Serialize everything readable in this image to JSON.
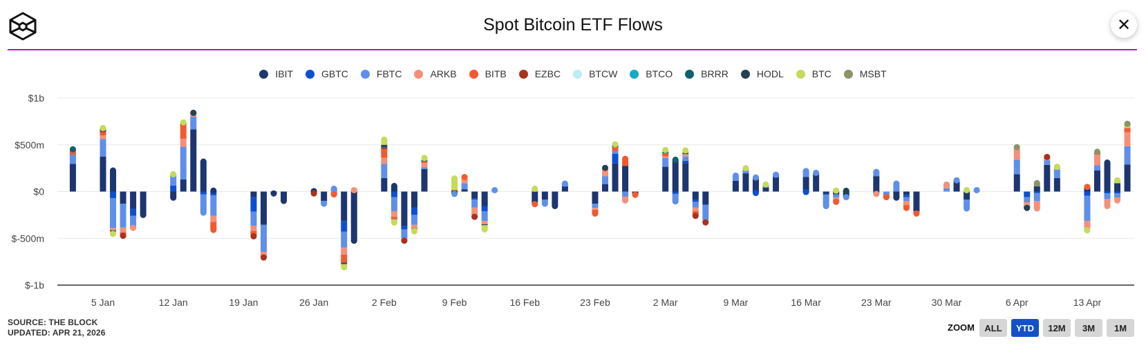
{
  "header": {
    "title": "Spot Bitcoin ETF Flows",
    "close_icon": "close-icon",
    "logo_icon": "the-block-cube-logo"
  },
  "footer": {
    "source": "SOURCE: THE BLOCK",
    "updated": "UPDATED: APR 21, 2026"
  },
  "zoom": {
    "label": "ZOOM",
    "options": [
      {
        "label": "ALL",
        "active": false
      },
      {
        "label": "YTD",
        "active": true
      },
      {
        "label": "12M",
        "active": false
      },
      {
        "label": "3M",
        "active": false
      },
      {
        "label": "1M",
        "active": false
      }
    ]
  },
  "chart_data": {
    "type": "bar",
    "stacked": true,
    "title": "Spot Bitcoin ETF Flows",
    "xlabel": "",
    "ylabel": "",
    "units": "USD millions",
    "ylim": [
      -1000,
      1000
    ],
    "yticks": [
      {
        "value": 1000,
        "label": "$1b"
      },
      {
        "value": 500,
        "label": "$500m"
      },
      {
        "value": 0,
        "label": "$0"
      },
      {
        "value": -500,
        "label": "$-500m"
      },
      {
        "value": -1000,
        "label": "$-1b"
      }
    ],
    "xticks": [
      {
        "date": "2026-01-05",
        "label": "5 Jan"
      },
      {
        "date": "2026-01-12",
        "label": "12 Jan"
      },
      {
        "date": "2026-01-19",
        "label": "19 Jan"
      },
      {
        "date": "2026-01-26",
        "label": "26 Jan"
      },
      {
        "date": "2026-02-02",
        "label": "2 Feb"
      },
      {
        "date": "2026-02-09",
        "label": "9 Feb"
      },
      {
        "date": "2026-02-16",
        "label": "16 Feb"
      },
      {
        "date": "2026-02-23",
        "label": "23 Feb"
      },
      {
        "date": "2026-03-02",
        "label": "2 Mar"
      },
      {
        "date": "2026-03-09",
        "label": "9 Mar"
      },
      {
        "date": "2026-03-16",
        "label": "16 Mar"
      },
      {
        "date": "2026-03-23",
        "label": "23 Mar"
      },
      {
        "date": "2026-03-30",
        "label": "30 Mar"
      },
      {
        "date": "2026-04-06",
        "label": "6 Apr"
      },
      {
        "date": "2026-04-13",
        "label": "13 Apr"
      }
    ],
    "grid": true,
    "legend_position": "top-center",
    "series": [
      {
        "name": "IBIT",
        "color": "#1d3670"
      },
      {
        "name": "GBTC",
        "color": "#0d4fd1"
      },
      {
        "name": "FBTC",
        "color": "#5f8fe8"
      },
      {
        "name": "ARKB",
        "color": "#f4907a"
      },
      {
        "name": "BITB",
        "color": "#f15a30"
      },
      {
        "name": "EZBC",
        "color": "#a8331f"
      },
      {
        "name": "BTCW",
        "color": "#bdebf6"
      },
      {
        "name": "BTCO",
        "color": "#17a9c6"
      },
      {
        "name": "BRRR",
        "color": "#0f6070"
      },
      {
        "name": "HODL",
        "color": "#23414f"
      },
      {
        "name": "BTC",
        "color": "#c5db5c"
      },
      {
        "name": "MSBT",
        "color": "#8a9468"
      }
    ],
    "points": [
      {
        "date": "2026-01-02",
        "values": {
          "IBIT": 295,
          "FBTC": 100,
          "BITB": 45,
          "BRRR": 12
        }
      },
      {
        "date": "2026-01-05",
        "values": {
          "IBIT": 375,
          "FBTC": 185,
          "ARKB": 40,
          "BITB": 35,
          "EZBC": 12,
          "BRRR": 20,
          "BTC": 12
        }
      },
      {
        "date": "2026-01-06",
        "values": {
          "IBIT": 225,
          "GBTC": -70,
          "FBTC": -320,
          "ARKB": -25,
          "HODL": -12,
          "BTC": -25
        }
      },
      {
        "date": "2026-01-07",
        "values": {
          "IBIT": -130,
          "FBTC": -255,
          "ARKB": -50,
          "BITB": -30,
          "EZBC": -8
        }
      },
      {
        "date": "2026-01-08",
        "values": {
          "IBIT": -185,
          "GBTC": -75,
          "FBTC": -120,
          "ARKB": -8
        }
      },
      {
        "date": "2026-01-09",
        "values": {
          "IBIT": -250
        }
      },
      {
        "date": "2026-01-12",
        "values": {
          "IBIT": -65,
          "GBTC": 65,
          "FBTC": 115,
          "BTC": 5
        }
      },
      {
        "date": "2026-01-13",
        "values": {
          "IBIT": 130,
          "FBTC": 350,
          "ARKB": 85,
          "BITB": 155,
          "HODL": 8,
          "BTC": 12
        }
      },
      {
        "date": "2026-01-14",
        "values": {
          "IBIT": 665,
          "FBTC": 135,
          "ARKB": 30,
          "HODL": 12
        }
      },
      {
        "date": "2026-01-15",
        "values": {
          "IBIT": 320,
          "GBTC": -30,
          "FBTC": -195
        }
      },
      {
        "date": "2026-01-16",
        "values": {
          "IBIT": 10,
          "GBTC": -40,
          "FBTC": -220,
          "ARKB": -65,
          "BITB": -85
        }
      },
      {
        "date": "2026-01-20",
        "values": {
          "IBIT": -60,
          "GBTC": -155,
          "FBTC": -150,
          "ARKB": -55,
          "BITB": -50,
          "EZBC": -8
        }
      },
      {
        "date": "2026-01-21",
        "values": {
          "IBIT": -355,
          "FBTC": -290,
          "ARKB": -40,
          "EZBC": -20
        }
      },
      {
        "date": "2026-01-22",
        "values": {
          "IBIT": -20
        }
      },
      {
        "date": "2026-01-23",
        "values": {
          "IBIT": -100
        }
      },
      {
        "date": "2026-01-26",
        "values": {
          "IBIT": 5,
          "EZBC": -5,
          "BITB": -15
        }
      },
      {
        "date": "2026-01-27",
        "values": {
          "IBIT": -100,
          "FBTC": -30
        }
      },
      {
        "date": "2026-01-28",
        "values": {
          "FBTC": 30,
          "ARKB": -5,
          "BITB": -25
        }
      },
      {
        "date": "2026-01-29",
        "values": {
          "IBIT": -315,
          "GBTC": -115,
          "FBTC": -170,
          "ARKB": -75,
          "BITB": -85,
          "HODL": -10,
          "BRRR": -5,
          "BTC": -35
        }
      },
      {
        "date": "2026-01-30",
        "values": {
          "IBIT": -525,
          "ARKB": 15
        }
      },
      {
        "date": "2026-02-02",
        "values": {
          "IBIT": 145,
          "FBTC": 150,
          "ARKB": 65,
          "BITB": 95,
          "EZBC": 15,
          "HODL": 20,
          "BRRR": 10,
          "BTC": 55
        }
      },
      {
        "date": "2026-02-03",
        "values": {
          "IBIT": 60,
          "GBTC": -60,
          "FBTC": -150,
          "ARKB": -60,
          "BITB": -20,
          "EZBC": -5,
          "BTC": -35
        }
      },
      {
        "date": "2026-02-04",
        "values": {
          "IBIT": -370,
          "GBTC": -35,
          "FBTC": -95,
          "ARKB": -20,
          "EZBC": -5
        }
      },
      {
        "date": "2026-02-05",
        "values": {
          "IBIT": -170,
          "GBTC": -80,
          "FBTC": -105,
          "ARKB": -35,
          "BITB": -10,
          "BTC": -25
        }
      },
      {
        "date": "2026-02-06",
        "values": {
          "IBIT": 240,
          "FBTC": 20,
          "ARKB": 45,
          "BITB": 20,
          "BRRR": 10,
          "BTC": 25
        }
      },
      {
        "date": "2026-02-09",
        "values": {
          "IBIT": -20,
          "EZBC": 15,
          "BTC": 125,
          "FBTC": -5
        }
      },
      {
        "date": "2026-02-10",
        "values": {
          "IBIT": 25,
          "FBTC": 65,
          "ARKB": 55,
          "BITB": 10
        }
      },
      {
        "date": "2026-02-11",
        "values": {
          "IBIT": -75,
          "GBTC": -10,
          "FBTC": -85,
          "ARKB": -90,
          "EZBC": -10
        }
      },
      {
        "date": "2026-02-12",
        "values": {
          "IBIT": -155,
          "GBTC": -55,
          "FBTC": -105,
          "ARKB": -35,
          "HODL": -10,
          "BTC": -45
        }
      },
      {
        "date": "2026-02-13",
        "values": {
          "FBTC": 15
        }
      },
      {
        "date": "2026-02-17",
        "values": {
          "IBIT": -115,
          "FBTC": -5,
          "BITB": -15,
          "BTC": 30
        }
      },
      {
        "date": "2026-02-18",
        "values": {
          "IBIT": -85,
          "FBTC": -45
        }
      },
      {
        "date": "2026-02-19",
        "values": {
          "IBIT": -155
        }
      },
      {
        "date": "2026-02-20",
        "values": {
          "IBIT": 55,
          "FBTC": 30
        }
      },
      {
        "date": "2026-02-23",
        "values": {
          "IBIT": -130,
          "FBTC": -45,
          "ARKB": -20,
          "BITB": -40
        }
      },
      {
        "date": "2026-02-24",
        "values": {
          "IBIT": 80,
          "FBTC": 85,
          "ARKB": 80,
          "HODL": 8
        }
      },
      {
        "date": "2026-02-25",
        "values": {
          "IBIT": 300,
          "GBTC": 105,
          "FBTC": 30,
          "BITB": 40,
          "HODL": 15,
          "BTC": 15
        }
      },
      {
        "date": "2026-02-26",
        "values": {
          "IBIT": 275,
          "BITB": 75,
          "FBTC": -55,
          "ARKB": -40
        }
      },
      {
        "date": "2026-02-27",
        "values": {
          "IBIT": -30,
          "BITB": -5
        }
      },
      {
        "date": "2026-03-02",
        "values": {
          "IBIT": 265,
          "FBTC": 95,
          "ARKB": 15,
          "BITB": 35,
          "BRRR": 15,
          "BTC": 20
        }
      },
      {
        "date": "2026-03-03",
        "values": {
          "IBIT": 325,
          "BRRR": 15,
          "GBTC": -25,
          "FBTC": -80
        }
      },
      {
        "date": "2026-03-04",
        "values": {
          "IBIT": 305,
          "GBTC": 25,
          "FBTC": 45,
          "ARKB": 25,
          "BRRR": 15,
          "BTC": 25
        }
      },
      {
        "date": "2026-03-05",
        "values": {
          "IBIT": -90,
          "GBTC": -20,
          "FBTC": -60,
          "ARKB": -40,
          "BITB": -45,
          "EZBC": -5
        }
      },
      {
        "date": "2026-03-06",
        "values": {
          "IBIT": -140,
          "FBTC": -165,
          "ARKB": -15,
          "EZBC": -10
        }
      },
      {
        "date": "2026-03-09",
        "values": {
          "IBIT": 115,
          "FBTC": 55
        }
      },
      {
        "date": "2026-03-10",
        "values": {
          "IBIT": 195,
          "FBTC": 30,
          "ARKB": 15,
          "EZBC": 5,
          "BTC": 5
        }
      },
      {
        "date": "2026-03-11",
        "values": {
          "IBIT": 135,
          "FBTC": 15,
          "GBTC": -15
        }
      },
      {
        "date": "2026-03-12",
        "values": {
          "IBIT": 45,
          "FBTC": 25,
          "BTC": 5
        }
      },
      {
        "date": "2026-03-13",
        "values": {
          "IBIT": 155,
          "FBTC": 25
        }
      },
      {
        "date": "2026-03-16",
        "values": {
          "IBIT": 155,
          "FBTC": 65,
          "GBTC": -5
        }
      },
      {
        "date": "2026-03-17",
        "values": {
          "IBIT": 185,
          "FBTC": 15
        }
      },
      {
        "date": "2026-03-18",
        "values": {
          "IBIT": -25,
          "GBTC": -10,
          "FBTC": -120
        }
      },
      {
        "date": "2026-03-19",
        "values": {
          "IBIT": -30,
          "FBTC": -35,
          "ARKB": -25,
          "BITB": -20,
          "BTC": 10
        }
      },
      {
        "date": "2026-03-20",
        "values": {
          "IBIT": -50,
          "FBTC": -10,
          "HODL": 8
        }
      },
      {
        "date": "2026-03-23",
        "values": {
          "IBIT": 165,
          "FBTC": 45,
          "GBTC": -15,
          "ARKB": -10
        }
      },
      {
        "date": "2026-03-24",
        "values": {
          "FBTC": -40,
          "BITB": -20
        }
      },
      {
        "date": "2026-03-25",
        "values": {
          "FBTC": 85,
          "IBIT": -65
        }
      },
      {
        "date": "2026-03-26",
        "values": {
          "IBIT": -35,
          "GBTC": -25,
          "FBTC": -40,
          "ARKB": -45,
          "BITB": -30
        }
      },
      {
        "date": "2026-03-27",
        "values": {
          "IBIT": -210,
          "BITB": -25
        }
      },
      {
        "date": "2026-03-30",
        "values": {
          "FBTC": 35,
          "ARKB": 40
        }
      },
      {
        "date": "2026-03-31",
        "values": {
          "IBIT": 105,
          "FBTC": 15
        }
      },
      {
        "date": "2026-04-01",
        "values": {
          "IBIT": -85,
          "FBTC": -95,
          "BTC": 15
        }
      },
      {
        "date": "2026-04-02",
        "values": {
          "FBTC": 15
        }
      },
      {
        "date": "2026-04-06",
        "values": {
          "IBIT": 185,
          "FBTC": 155,
          "ARKB": 125,
          "MSBT": 10
        }
      },
      {
        "date": "2026-04-07",
        "values": {
          "GBTC": -60,
          "FBTC": -55,
          "ARKB": -40,
          "HODL": -20
        }
      },
      {
        "date": "2026-04-08",
        "values": {
          "IBIT": 55,
          "FBTC": -85,
          "ARKB": -80,
          "GBTC": -15,
          "MSBT": 35
        }
      },
      {
        "date": "2026-04-09",
        "values": {
          "IBIT": 285,
          "FBTC": 50,
          "ARKB": 20,
          "EZBC": 15
        }
      },
      {
        "date": "2026-04-10",
        "values": {
          "IBIT": 145,
          "FBTC": 90,
          "ARKB": 15,
          "BTC": 15
        }
      },
      {
        "date": "2026-04-13",
        "values": {
          "IBIT": 35,
          "GBTC": -45,
          "FBTC": -270,
          "ARKB": -75,
          "BTC": -25,
          "BITB": 15
        }
      },
      {
        "date": "2026-04-14",
        "values": {
          "IBIT": 225,
          "FBTC": 55,
          "ARKB": 120,
          "EZBC": 15,
          "MSBT": 10
        }
      },
      {
        "date": "2026-04-15",
        "values": {
          "IBIT": 310,
          "GBTC": -20,
          "FBTC": -60,
          "ARKB": -75
        }
      },
      {
        "date": "2026-04-16",
        "values": {
          "IBIT": 90,
          "BTC": 30,
          "GBTC": -20,
          "FBTC": -45,
          "ARKB": -30
        }
      },
      {
        "date": "2026-04-17",
        "values": {
          "IBIT": 290,
          "FBTC": 195,
          "ARKB": 150,
          "BITB": 45,
          "MSBT": 20,
          "BTC": 25
        }
      }
    ]
  }
}
